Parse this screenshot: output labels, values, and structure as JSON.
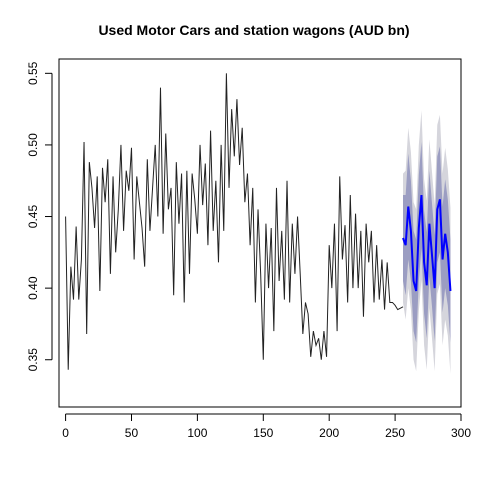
{
  "chart_data": {
    "type": "line",
    "title": "Used Motor Cars and station wagons (AUD bn)",
    "xlabel": "",
    "ylabel": "",
    "xlim": [
      -5,
      300
    ],
    "ylim": [
      0.317,
      0.56
    ],
    "x_ticks": [
      0,
      50,
      100,
      150,
      200,
      250,
      300
    ],
    "y_ticks": [
      0.35,
      0.4,
      0.45,
      0.5,
      0.55
    ],
    "y_tick_labels": [
      "0.35",
      "0.40",
      "0.45",
      "0.50",
      "0.55"
    ],
    "grid": false,
    "legend": "none",
    "colors": {
      "history": "#222222",
      "forecast": "#0000ff",
      "band_outer": "#d5d5dc",
      "band_inner": "#9b9dc2"
    },
    "series": [
      {
        "role": "history",
        "x": [
          0,
          2,
          4,
          6,
          8,
          10,
          12,
          14,
          16,
          18,
          20,
          22,
          24,
          26,
          28,
          30,
          32,
          34,
          36,
          38,
          40,
          42,
          44,
          46,
          48,
          50,
          52,
          54,
          56,
          58,
          60,
          62,
          64,
          66,
          68,
          70,
          72,
          74,
          76,
          78,
          80,
          82,
          84,
          86,
          88,
          90,
          92,
          94,
          96,
          98,
          100,
          102,
          104,
          106,
          108,
          110,
          112,
          114,
          116,
          118,
          120,
          122,
          124,
          126,
          128,
          130,
          132,
          134,
          136,
          138,
          140,
          142,
          144,
          146,
          148,
          150,
          152,
          154,
          156,
          158,
          160,
          162,
          164,
          166,
          168,
          170,
          172,
          174,
          176,
          178,
          180,
          182,
          184,
          186,
          188,
          190,
          192,
          194,
          196,
          198,
          200,
          202,
          204,
          206,
          208,
          210,
          212,
          214,
          216,
          218,
          220,
          222,
          224,
          226,
          228,
          230,
          232,
          234,
          236,
          238,
          240,
          242,
          244,
          246,
          248,
          250,
          252,
          254,
          256
        ],
        "y": [
          0.45,
          0.343,
          0.415,
          0.392,
          0.443,
          0.392,
          0.42,
          0.502,
          0.368,
          0.488,
          0.47,
          0.442,
          0.478,
          0.398,
          0.484,
          0.46,
          0.49,
          0.41,
          0.478,
          0.425,
          0.455,
          0.5,
          0.44,
          0.482,
          0.468,
          0.498,
          0.42,
          0.478,
          0.46,
          0.442,
          0.415,
          0.49,
          0.44,
          0.47,
          0.5,
          0.45,
          0.54,
          0.438,
          0.508,
          0.455,
          0.47,
          0.395,
          0.488,
          0.445,
          0.48,
          0.39,
          0.482,
          0.41,
          0.48,
          0.462,
          0.438,
          0.5,
          0.458,
          0.487,
          0.43,
          0.51,
          0.44,
          0.475,
          0.418,
          0.5,
          0.44,
          0.55,
          0.47,
          0.525,
          0.492,
          0.532,
          0.486,
          0.512,
          0.46,
          0.48,
          0.43,
          0.47,
          0.39,
          0.455,
          0.41,
          0.35,
          0.445,
          0.4,
          0.442,
          0.37,
          0.47,
          0.405,
          0.44,
          0.392,
          0.475,
          0.39,
          0.445,
          0.41,
          0.45,
          0.41,
          0.368,
          0.39,
          0.382,
          0.352,
          0.37,
          0.36,
          0.365,
          0.35,
          0.37,
          0.352,
          0.43,
          0.4,
          0.445,
          0.37,
          0.478,
          0.42,
          0.444,
          0.39,
          0.465,
          0.4,
          0.452,
          0.4,
          0.44,
          0.38,
          0.445,
          0.418,
          0.44,
          0.39,
          0.43,
          0.392,
          0.42,
          0.385,
          0.418,
          0.39,
          0.39,
          0.388,
          0.385,
          0.386,
          0.387
        ]
      },
      {
        "role": "forecast",
        "x": [
          256,
          258,
          260,
          262,
          264,
          266,
          268,
          270,
          272,
          274,
          276,
          278,
          280,
          282,
          284,
          286,
          288,
          290,
          292
        ],
        "y": [
          0.435,
          0.43,
          0.457,
          0.44,
          0.405,
          0.398,
          0.442,
          0.465,
          0.418,
          0.402,
          0.445,
          0.423,
          0.4,
          0.455,
          0.462,
          0.42,
          0.438,
          0.425,
          0.398
        ],
        "lower_80": [
          0.405,
          0.395,
          0.42,
          0.405,
          0.37,
          0.362,
          0.405,
          0.428,
          0.382,
          0.365,
          0.408,
          0.387,
          0.363,
          0.418,
          0.425,
          0.383,
          0.4,
          0.388,
          0.362
        ],
        "upper_80": [
          0.465,
          0.465,
          0.494,
          0.475,
          0.44,
          0.434,
          0.479,
          0.502,
          0.454,
          0.439,
          0.482,
          0.459,
          0.437,
          0.492,
          0.499,
          0.457,
          0.476,
          0.462,
          0.434
        ],
        "lower_95": [
          0.39,
          0.378,
          0.4,
          0.385,
          0.35,
          0.342,
          0.384,
          0.406,
          0.36,
          0.343,
          0.386,
          0.365,
          0.342,
          0.396,
          0.403,
          0.36,
          0.378,
          0.367,
          0.34
        ],
        "upper_95": [
          0.48,
          0.482,
          0.512,
          0.495,
          0.46,
          0.455,
          0.5,
          0.524,
          0.476,
          0.461,
          0.504,
          0.481,
          0.458,
          0.514,
          0.521,
          0.48,
          0.498,
          0.483,
          0.456
        ]
      }
    ]
  }
}
